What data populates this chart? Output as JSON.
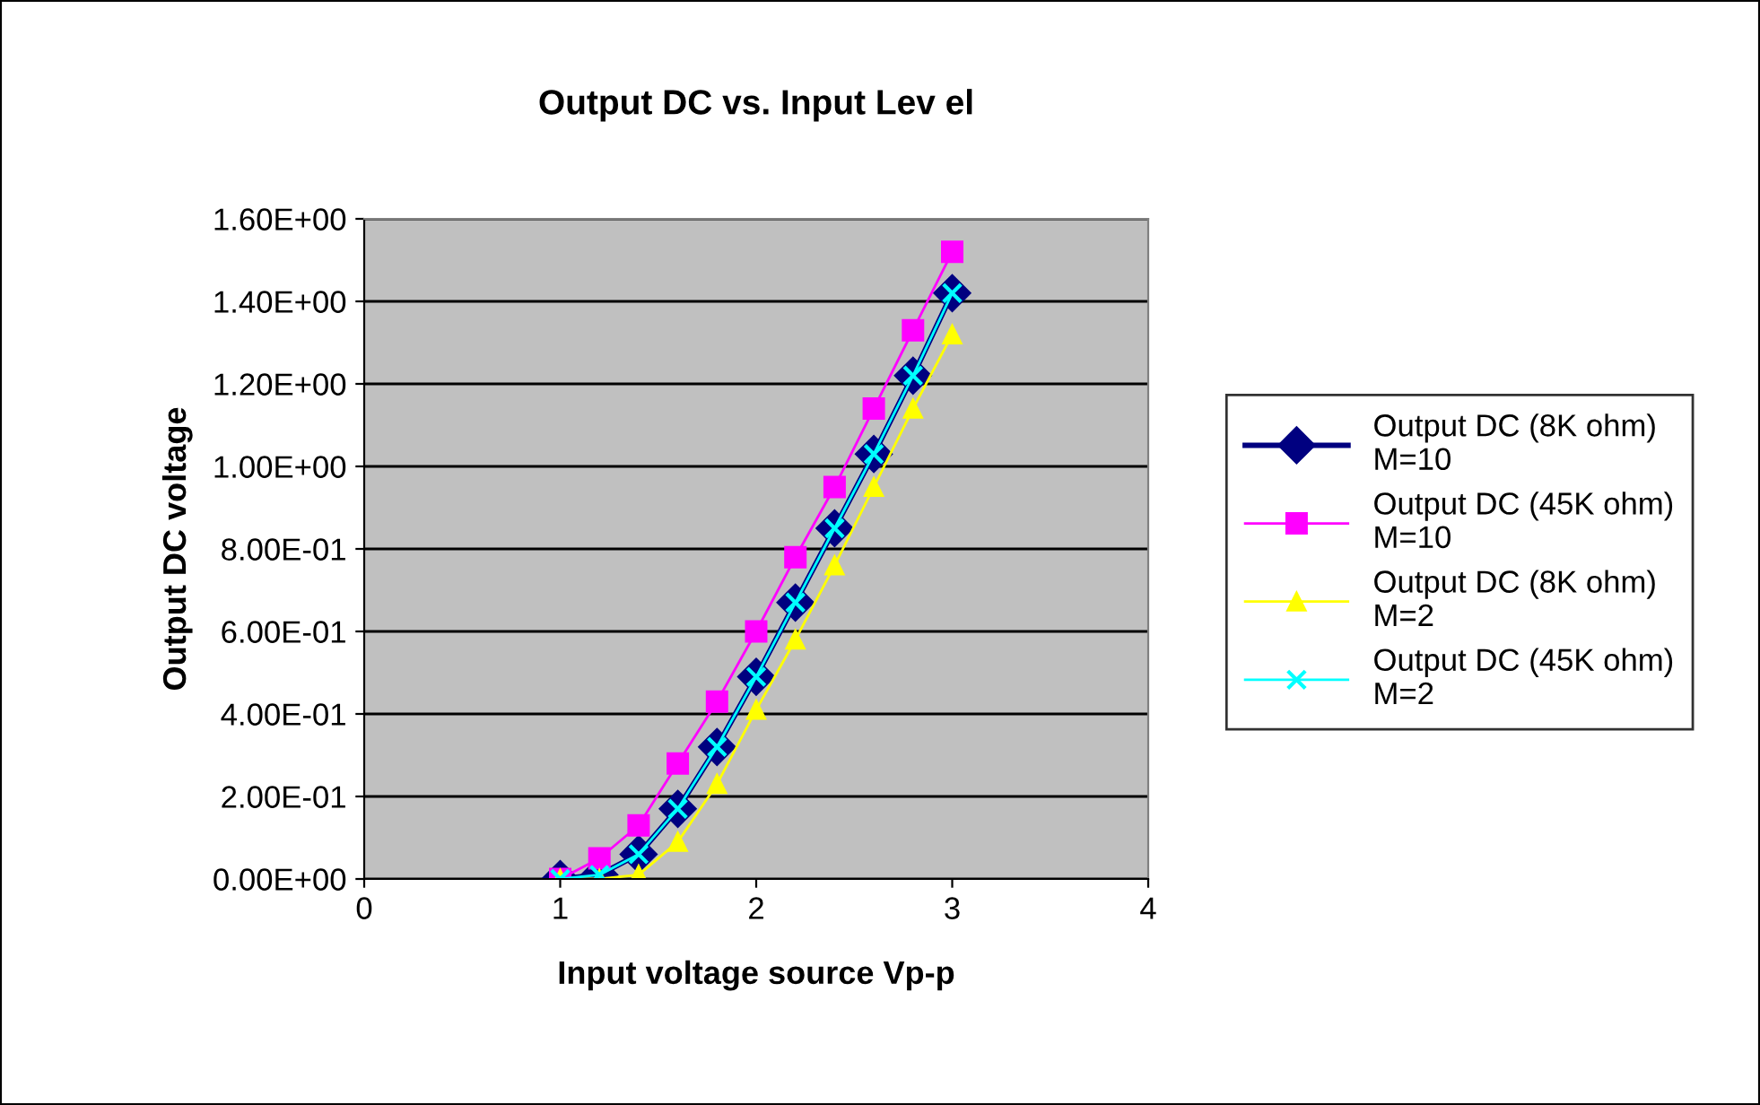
{
  "chart_data": {
    "type": "line",
    "title": "Output DC vs. Input Lev el",
    "xlabel": "Input voltage source Vp-p",
    "ylabel": "Output DC voltage",
    "x": [
      1,
      1.2,
      1.4,
      1.6,
      1.8,
      2,
      2.2,
      2.4,
      2.6,
      2.8,
      3
    ],
    "series": [
      {
        "name": "Output DC (8K ohm)\nM=10",
        "color": "#000080",
        "marker": "diamond",
        "values": [
          0,
          0.01,
          0.06,
          0.17,
          0.32,
          0.49,
          0.67,
          0.85,
          1.03,
          1.22,
          1.42
        ]
      },
      {
        "name": "Output DC (45K ohm)\nM=10",
        "color": "#ff00ff",
        "marker": "square",
        "values": [
          0,
          0.05,
          0.13,
          0.28,
          0.43,
          0.6,
          0.78,
          0.95,
          1.14,
          1.33,
          1.52
        ]
      },
      {
        "name": "Output DC (8K ohm)\nM=2",
        "color": "#ffff00",
        "marker": "triangle",
        "values": [
          0,
          0,
          0.01,
          0.09,
          0.23,
          0.41,
          0.58,
          0.76,
          0.95,
          1.14,
          1.32
        ]
      },
      {
        "name": "Output DC (45K ohm)\nM=2",
        "color": "#00ffff",
        "marker": "cross",
        "values": [
          0,
          0.01,
          0.06,
          0.17,
          0.32,
          0.49,
          0.67,
          0.85,
          1.03,
          1.22,
          1.42
        ]
      }
    ],
    "xlim": [
      0,
      4
    ],
    "xticks": [
      0,
      1,
      2,
      3,
      4
    ],
    "ylim": [
      0,
      1.6
    ],
    "yticks": [
      {
        "value": 0,
        "label": "0.00E+00"
      },
      {
        "value": 0.2,
        "label": "2.00E-01"
      },
      {
        "value": 0.4,
        "label": "4.00E-01"
      },
      {
        "value": 0.6,
        "label": "6.00E-01"
      },
      {
        "value": 0.8,
        "label": "8.00E-01"
      },
      {
        "value": 1.0,
        "label": "1.00E+00"
      },
      {
        "value": 1.2,
        "label": "1.20E+00"
      },
      {
        "value": 1.4,
        "label": "1.40E+00"
      },
      {
        "value": 1.6,
        "label": "1.60E+00"
      }
    ],
    "grid": "y",
    "legend": "right",
    "line_style": "solid"
  }
}
